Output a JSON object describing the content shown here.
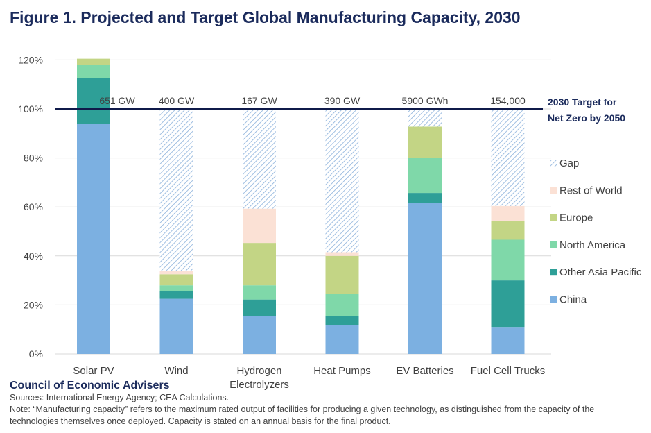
{
  "title": "Figure 1. Projected and Target Global Manufacturing Capacity, 2030",
  "footer": {
    "org": "Council of Economic Advisers",
    "sources": "Sources: International Energy Agency; CEA Calculations.",
    "note": "Note: “Manufacturing capacity” refers to the maximum rated output of facilities for producing a given technology, as distinguished from the capacity of the technologies themselves once deployed. Capacity is stated on an annual basis for the final product."
  },
  "colors": {
    "China": "#7cb0e1",
    "Other Asia Pacific": "#2e9f97",
    "North America": "#7fd8a9",
    "Europe": "#c3d585",
    "Rest of World": "#fbe1d5",
    "Gap": "#8ab0db",
    "target_line": "#0f1a4a",
    "title": "#1b2b5c"
  },
  "chart_data": {
    "type": "bar",
    "stacked": true,
    "title": "Figure 1. Projected and Target Global Manufacturing Capacity, 2030",
    "categories": [
      [
        "Solar PV"
      ],
      [
        "Wind"
      ],
      [
        "Hydrogen",
        "Electrolyzers"
      ],
      [
        "Heat Pumps"
      ],
      [
        "EV Batteries"
      ],
      [
        "Fuel Cell Trucks"
      ]
    ],
    "category_labels": [
      "Solar PV",
      "Wind",
      "Hydrogen Electrolyzers",
      "Heat Pumps",
      "EV Batteries",
      "Fuel Cell Trucks"
    ],
    "target_values": [
      "651 GW",
      "400 GW",
      "167 GW",
      "390 GW",
      "5900 GWh",
      "154,000"
    ],
    "target_label": [
      "2030 Target for",
      "Net Zero by 2050"
    ],
    "target_line": 100,
    "ylim": [
      0,
      120
    ],
    "yticks": [
      0,
      20,
      40,
      60,
      80,
      100,
      120
    ],
    "ytick_labels": [
      "0%",
      "20%",
      "40%",
      "60%",
      "80%",
      "100%",
      "120%"
    ],
    "ylabel": "",
    "xlabel": "",
    "legend": {
      "position": "right",
      "entries": [
        "Gap",
        "Rest of World",
        "Europe",
        "North America",
        "Other Asia Pacific",
        "China"
      ]
    },
    "series": [
      {
        "name": "China",
        "values": [
          94,
          22.5,
          15.5,
          11.8,
          61.5,
          11
        ]
      },
      {
        "name": "Other Asia Pacific",
        "values": [
          18.5,
          3,
          6.7,
          3.7,
          4.2,
          19
        ]
      },
      {
        "name": "North America",
        "values": [
          5.5,
          2.5,
          5.8,
          9,
          14.3,
          16.6
        ]
      },
      {
        "name": "Europe",
        "values": [
          2.5,
          4.5,
          17.3,
          15.5,
          12.8,
          7.6
        ]
      },
      {
        "name": "Rest of World",
        "values": [
          0,
          1.5,
          14,
          1.5,
          0,
          6.2
        ]
      },
      {
        "name": "Gap",
        "values": [
          0,
          66,
          40.7,
          58.5,
          7.2,
          39.6
        ]
      }
    ]
  }
}
